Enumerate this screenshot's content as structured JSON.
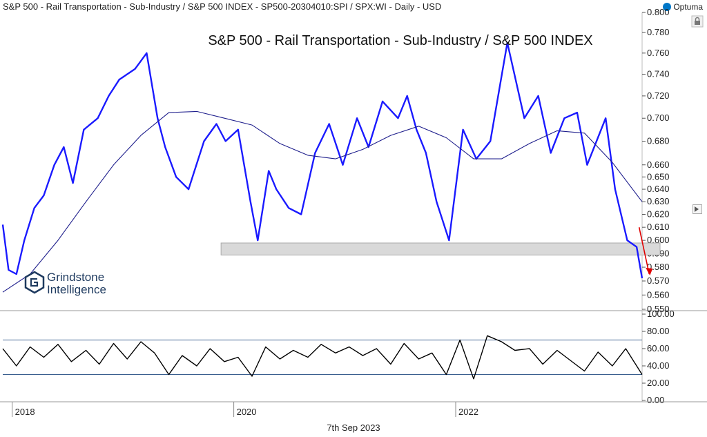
{
  "header": {
    "title": "S&P 500 - Rail Transportation - Sub-Industry / S&P 500 INDEX - SP500-20304010:SPI / SPX:WI - Daily - USD",
    "brand": "Optuma"
  },
  "watermark": {
    "line1": "Grindstone",
    "line2": "Intelligence"
  },
  "footer": {
    "date": "7th Sep 2023"
  },
  "icons": {
    "lock": "lock-icon",
    "brand_logo": "optuma-logo-icon",
    "marker": "pan-marker-icon"
  },
  "chart_data": [
    {
      "type": "line",
      "title": "S&P 500 - Rail Transportation - Sub-Industry / S&P 500 INDEX",
      "scale": "log",
      "ylim": [
        0.55,
        0.8
      ],
      "yticks": [
        "0.800",
        "0.780",
        "0.760",
        "0.740",
        "0.720",
        "0.700",
        "0.680",
        "0.660",
        "0.650",
        "0.640",
        "0.630",
        "0.620",
        "0.610",
        "0.600",
        "0.590",
        "0.580",
        "0.570",
        "0.560",
        "0.550"
      ],
      "xticks": [
        "2018",
        "2020",
        "2022"
      ],
      "x_range": [
        "2017-12-01",
        "2023-09-07"
      ],
      "series": [
        {
          "color": "#1a1aff",
          "x": [
            "2017-12-01",
            "2017-12-20",
            "2018-01-15",
            "2018-02-10",
            "2018-03-15",
            "2018-04-15",
            "2018-05-20",
            "2018-06-20",
            "2018-07-20",
            "2018-08-25",
            "2018-10-10",
            "2018-11-15",
            "2018-12-20",
            "2019-02-10",
            "2019-03-20",
            "2019-04-25",
            "2019-05-20",
            "2019-06-25",
            "2019-08-05",
            "2019-09-25",
            "2019-11-05",
            "2019-12-05",
            "2020-01-15",
            "2020-02-25",
            "2020-03-20",
            "2020-04-25",
            "2020-05-20",
            "2020-06-30",
            "2020-08-10",
            "2020-09-25",
            "2020-11-10",
            "2020-12-25",
            "2021-02-10",
            "2021-03-20",
            "2021-05-05",
            "2021-06-25",
            "2021-07-25",
            "2021-08-25",
            "2021-09-25",
            "2021-10-30",
            "2021-12-10",
            "2022-01-25",
            "2022-03-10",
            "2022-04-25",
            "2022-06-20",
            "2022-08-15",
            "2022-09-30",
            "2022-11-10",
            "2022-12-25",
            "2023-02-05",
            "2023-03-10",
            "2023-04-10",
            "2023-05-10",
            "2023-06-10",
            "2023-07-20",
            "2023-08-20",
            "2023-09-07"
          ],
          "y": [
            0.612,
            0.578,
            0.575,
            0.6,
            0.625,
            0.635,
            0.66,
            0.675,
            0.645,
            0.69,
            0.7,
            0.72,
            0.735,
            0.745,
            0.76,
            0.7,
            0.675,
            0.65,
            0.64,
            0.68,
            0.695,
            0.68,
            0.69,
            0.63,
            0.6,
            0.655,
            0.64,
            0.625,
            0.62,
            0.67,
            0.695,
            0.66,
            0.7,
            0.675,
            0.715,
            0.7,
            0.72,
            0.69,
            0.67,
            0.63,
            0.6,
            0.69,
            0.665,
            0.68,
            0.77,
            0.7,
            0.72,
            0.67,
            0.7,
            0.705,
            0.66,
            0.68,
            0.7,
            0.64,
            0.6,
            0.595,
            0.572
          ]
        },
        {
          "color": "#1e1e8c",
          "x": [
            "2017-12-01",
            "2018-03-01",
            "2018-06-01",
            "2018-09-01",
            "2018-12-01",
            "2019-03-01",
            "2019-06-01",
            "2019-09-01",
            "2019-12-01",
            "2020-03-01",
            "2020-06-01",
            "2020-09-01",
            "2020-12-01",
            "2021-03-01",
            "2021-06-01",
            "2021-09-01",
            "2021-12-01",
            "2022-03-01",
            "2022-06-01",
            "2022-09-01",
            "2022-12-01",
            "2023-03-01",
            "2023-06-01",
            "2023-09-07"
          ],
          "y": [
            0.562,
            0.575,
            0.6,
            0.63,
            0.66,
            0.685,
            0.705,
            0.706,
            0.7,
            0.694,
            0.678,
            0.668,
            0.665,
            0.673,
            0.685,
            0.693,
            0.683,
            0.665,
            0.665,
            0.678,
            0.689,
            0.687,
            0.662,
            0.63
          ]
        }
      ],
      "band": {
        "y_range": [
          0.589,
          0.598
        ],
        "color": "#d9d9d9"
      },
      "annotation_arrow": {
        "color": "#e00000",
        "from": [
          "2023-08-10",
          0.61
        ],
        "to": [
          "2023-08-25",
          0.575
        ]
      }
    },
    {
      "type": "line",
      "ylim": [
        0,
        100
      ],
      "yticks": [
        "100.00",
        "80.00",
        "60.00",
        "40.00",
        "20.00",
        "0.00"
      ],
      "reference_lines": [
        70,
        30
      ],
      "series": [
        {
          "color": "#000000",
          "x": [
            "2017-12-01",
            "2018-01-15",
            "2018-03-01",
            "2018-04-15",
            "2018-06-01",
            "2018-07-15",
            "2018-09-01",
            "2018-10-15",
            "2018-12-01",
            "2019-01-15",
            "2019-03-01",
            "2019-04-15",
            "2019-06-01",
            "2019-07-15",
            "2019-09-01",
            "2019-10-15",
            "2019-12-01",
            "2020-01-15",
            "2020-03-01",
            "2020-04-15",
            "2020-06-01",
            "2020-07-15",
            "2020-09-01",
            "2020-10-15",
            "2020-12-01",
            "2021-01-15",
            "2021-03-01",
            "2021-04-15",
            "2021-06-01",
            "2021-07-15",
            "2021-09-01",
            "2021-10-15",
            "2021-12-01",
            "2022-01-15",
            "2022-03-01",
            "2022-04-15",
            "2022-06-01",
            "2022-07-15",
            "2022-09-01",
            "2022-10-15",
            "2022-12-01",
            "2023-01-15",
            "2023-03-01",
            "2023-04-15",
            "2023-06-01",
            "2023-07-15",
            "2023-09-07"
          ],
          "y": [
            60,
            40,
            62,
            50,
            65,
            45,
            58,
            42,
            66,
            48,
            68,
            55,
            30,
            52,
            40,
            60,
            45,
            50,
            28,
            62,
            48,
            58,
            50,
            65,
            55,
            62,
            52,
            60,
            42,
            66,
            48,
            55,
            30,
            70,
            25,
            75,
            68,
            58,
            60,
            42,
            58,
            46,
            34,
            56,
            40,
            60,
            30
          ]
        }
      ]
    }
  ]
}
